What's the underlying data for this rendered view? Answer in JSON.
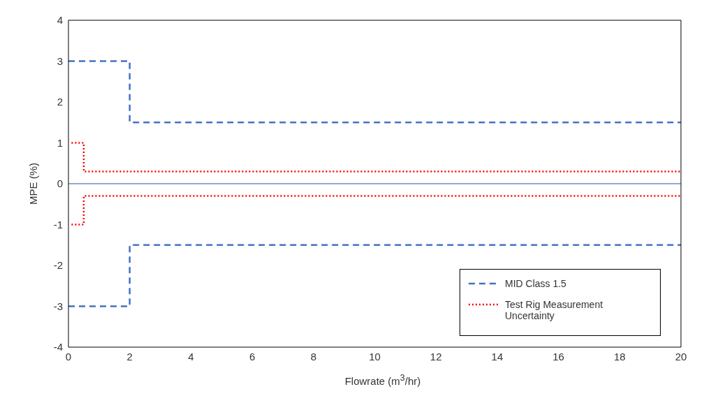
{
  "chart_data": {
    "type": "line",
    "xlabel": "Flowrate (m$^{3}$/hr)",
    "ylabel": "MPE (%)",
    "xlim": [
      0,
      20
    ],
    "xticks": [
      0,
      2,
      4,
      6,
      8,
      10,
      12,
      14,
      16,
      18,
      20
    ],
    "ylim": [
      -4,
      4
    ],
    "yticks": [
      -4,
      -3,
      -2,
      -1,
      0,
      1,
      2,
      3,
      4
    ],
    "grid": false,
    "legend": "bottom right",
    "marker": "none",
    "series": [
      {
        "name": "MID Class 1.5",
        "color": "#4472c4",
        "line_style": "dashed",
        "x": [
          0,
          2,
          2,
          20
        ],
        "values": [
          3,
          3,
          1.5,
          1.5
        ]
      },
      {
        "color": "#4472c4",
        "line_style": "dashed",
        "x": [
          0,
          2,
          2,
          20
        ],
        "values": [
          -3,
          -3,
          -1.5,
          -1.5
        ]
      },
      {
        "name": "Test Rig Measurement Uncertainty",
        "color": "#ff0000",
        "line_style": "dotted",
        "x": [
          0.1,
          0.5,
          0.5,
          20
        ],
        "values": [
          1,
          1,
          0.3,
          0.3
        ]
      },
      {
        "color": "#ff0000",
        "line_style": "dotted",
        "x": [
          0.1,
          0.5,
          0.5,
          20
        ],
        "values": [
          -1,
          -1,
          -0.3,
          -0.3
        ]
      }
    ],
    "ref_lines": [
      {
        "axis": "y",
        "value": 0,
        "color": "#2f5597",
        "line_style": "solid"
      }
    ]
  }
}
